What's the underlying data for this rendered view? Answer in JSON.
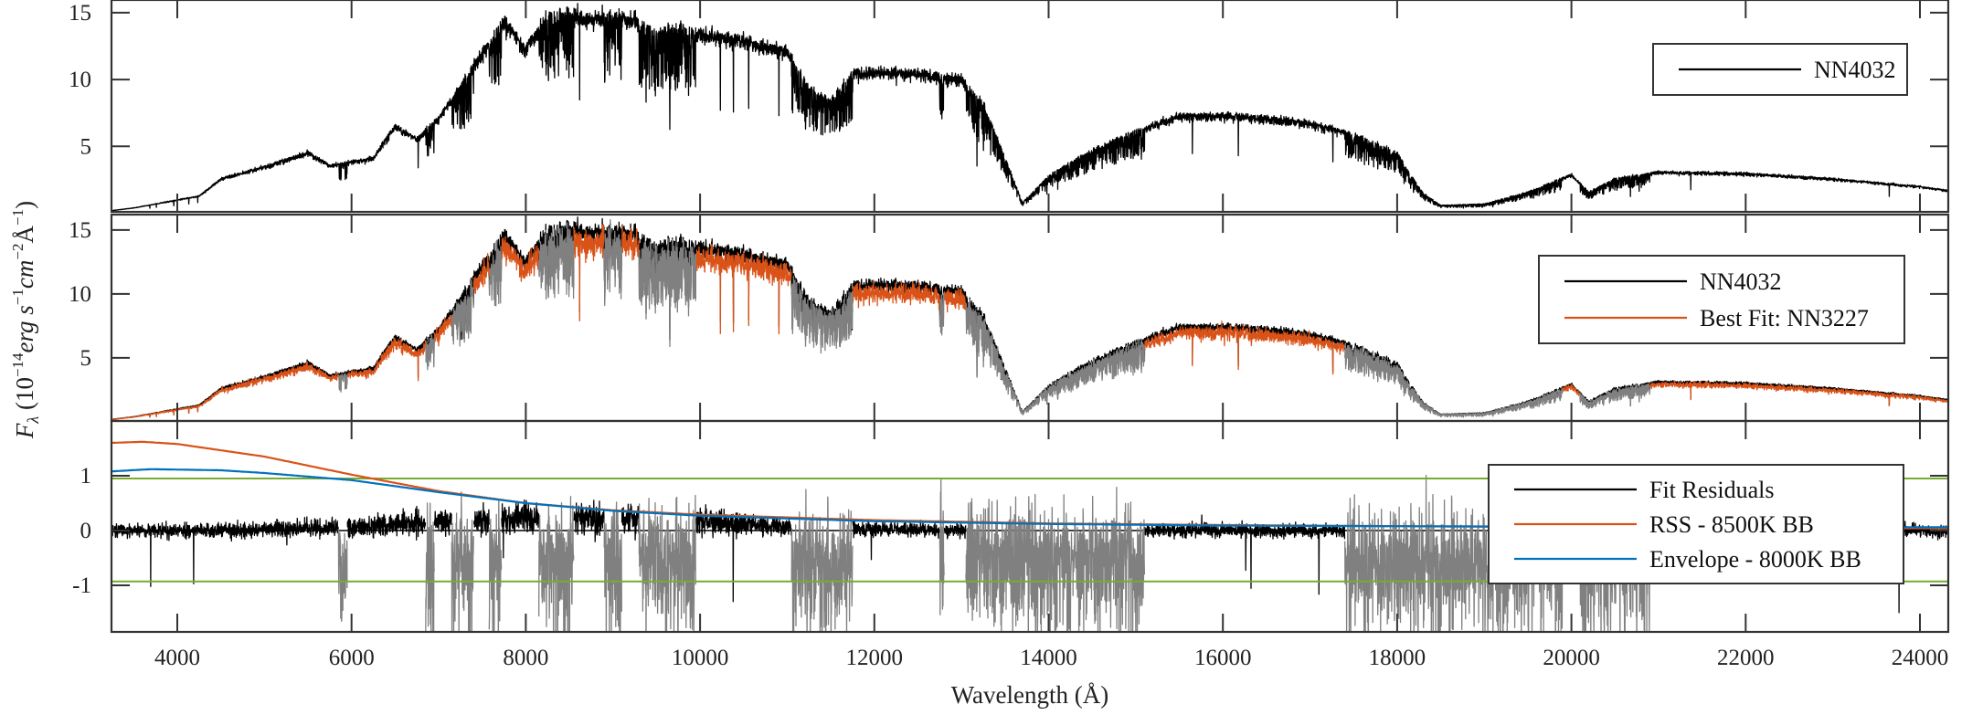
{
  "chart_data": {
    "type": "line",
    "xlabel": "Wavelength (Å)",
    "ylabel": "F_λ (10^-14 erg s^-1 cm^-2 Å^-1)",
    "ylabel_parts": {
      "f": "F",
      "sub": "λ",
      "open": " (10",
      "exp1": "−14",
      "erg": "erg s",
      "exp2": "−1",
      "cm": "cm",
      "exp3": "−2",
      "ang": "Å",
      "exp4": "−1",
      "close": ")"
    },
    "xlim": [
      3245,
      24325
    ],
    "x_ticks": [
      4000,
      6000,
      8000,
      10000,
      12000,
      14000,
      16000,
      18000,
      20000,
      22000,
      24000
    ],
    "x_tick_labels": [
      "4000",
      "6000",
      "8000",
      "10000",
      "12000",
      "14000",
      "16000",
      "18000",
      "20000",
      "22000",
      "24000"
    ],
    "colors": {
      "observed": "#000000",
      "best_fit": "#D95319",
      "masked": "#808080",
      "rss": "#D95319",
      "envelope": "#0072BD",
      "threshold": "#77AC30",
      "zero": "#000000"
    },
    "masked_ranges": [
      [
        5850,
        5950
      ],
      [
        6850,
        6950
      ],
      [
        7150,
        7400
      ],
      [
        7580,
        7720
      ],
      [
        8150,
        8550
      ],
      [
        8900,
        9100
      ],
      [
        9300,
        9950
      ],
      [
        11050,
        11750
      ],
      [
        12750,
        12800
      ],
      [
        13050,
        15100
      ],
      [
        17400,
        19900
      ],
      [
        20100,
        20900
      ]
    ],
    "panels": [
      {
        "name": "observed",
        "ylim": [
          0.1,
          15.95
        ],
        "y_ticks": [
          5,
          10,
          15
        ],
        "y_tick_labels": [
          "5",
          "10",
          "15"
        ],
        "legend": [
          {
            "label": "NN4032",
            "color": "#000000"
          }
        ],
        "legend_position": "top-right",
        "series": [
          {
            "name": "NN4032",
            "x": [
              3250,
              3500,
              4000,
              4250,
              4500,
              5000,
              5500,
              5750,
              6000,
              6250,
              6500,
              6750,
              7000,
              7250,
              7500,
              7750,
              8000,
              8250,
              8500,
              8750,
              9000,
              9250,
              9500,
              9750,
              10000,
              10500,
              11000,
              11250,
              11500,
              11750,
              12000,
              12500,
              13000,
              13250,
              13500,
              13700,
              14000,
              14500,
              15000,
              15500,
              16000,
              16500,
              17000,
              17500,
              18000,
              18300,
              18500,
              19000,
              19500,
              20000,
              20200,
              20500,
              21000,
              22000,
              23000,
              24000,
              24325
            ],
            "y": [
              0.2,
              0.4,
              1.0,
              1.3,
              2.6,
              3.5,
              4.6,
              3.6,
              3.9,
              4.2,
              6.6,
              5.6,
              7.2,
              9.6,
              12.2,
              14.5,
              12.5,
              15.0,
              15.0,
              14.7,
              15.0,
              14.6,
              13.6,
              14.1,
              13.6,
              13.1,
              12.2,
              9.5,
              8.5,
              10.6,
              10.7,
              10.6,
              10.1,
              8.2,
              4.2,
              0.8,
              2.8,
              4.8,
              6.2,
              7.4,
              7.4,
              7.2,
              6.8,
              6.0,
              4.5,
              1.5,
              0.6,
              0.7,
              1.6,
              2.9,
              1.6,
              2.6,
              3.1,
              3.0,
              2.6,
              2.0,
              1.7
            ]
          }
        ]
      },
      {
        "name": "fit",
        "ylim": [
          0.07,
          16.2
        ],
        "y_ticks": [
          5,
          10,
          15
        ],
        "y_tick_labels": [
          "5",
          "10",
          "15"
        ],
        "legend": [
          {
            "label": "NN4032",
            "color": "#000000"
          },
          {
            "label": "Best Fit: NN3227",
            "color": "#D95319"
          }
        ],
        "legend_position": "top-right",
        "best_fit_scale": 0.96
      },
      {
        "name": "residuals",
        "ylim": [
          -1.85,
          2.0
        ],
        "y_ticks": [
          -1,
          0,
          1
        ],
        "y_tick_labels": [
          "-1",
          "0",
          "1"
        ],
        "thresholds": [
          -0.93,
          0.95
        ],
        "legend": [
          {
            "label": "Fit Residuals",
            "color": "#000000"
          },
          {
            "label": "RSS - 8500K BB",
            "color": "#D95319"
          },
          {
            "label": "Envelope - 8000K BB",
            "color": "#0072BD"
          }
        ],
        "legend_position": "right",
        "series": [
          {
            "name": "RSS - 8500K BB",
            "x": [
              3245,
              3600,
              4000,
              5000,
              6000,
              7000,
              8000,
              9000,
              10000,
              12000,
              14000,
              16000,
              18000,
              20000,
              24325
            ],
            "y": [
              1.6,
              1.62,
              1.58,
              1.35,
              1.02,
              0.72,
              0.5,
              0.37,
              0.29,
              0.19,
              0.13,
              0.1,
              0.08,
              0.06,
              0.04
            ]
          },
          {
            "name": "Envelope - 8000K BB",
            "x": [
              3245,
              3700,
              4500,
              5000,
              6000,
              7000,
              8000,
              9000,
              10000,
              12000,
              14000,
              16000,
              18000,
              20000,
              24325
            ],
            "y": [
              1.08,
              1.12,
              1.1,
              1.05,
              0.92,
              0.7,
              0.5,
              0.36,
              0.27,
              0.17,
              0.12,
              0.09,
              0.08,
              0.07,
              0.06
            ]
          }
        ]
      }
    ]
  }
}
